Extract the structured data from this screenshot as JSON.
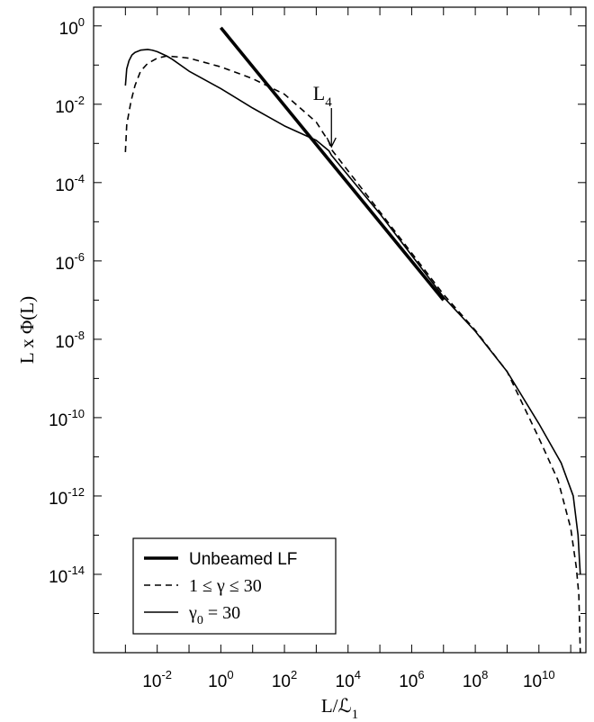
{
  "chart_data": {
    "type": "line",
    "xlabel": "L/ℒ",
    "xlabel_sub": "1",
    "ylabel": "L x Φ(L)",
    "xscale": "log",
    "yscale": "log",
    "xlim": [
      0.0001,
      300000000000.0
    ],
    "ylim": [
      1e-16,
      3
    ],
    "x_ticks": [
      {
        "base": "10",
        "exp": "-2",
        "value": 0.01
      },
      {
        "base": "10",
        "exp": "0",
        "value": 1
      },
      {
        "base": "10",
        "exp": "2",
        "value": 100
      },
      {
        "base": "10",
        "exp": "4",
        "value": 10000
      },
      {
        "base": "10",
        "exp": "6",
        "value": 1000000
      },
      {
        "base": "10",
        "exp": "8",
        "value": 100000000
      },
      {
        "base": "10",
        "exp": "10",
        "value": 10000000000
      }
    ],
    "y_ticks": [
      {
        "base": "10",
        "exp": "0",
        "value": 1
      },
      {
        "base": "10",
        "exp": "-2",
        "value": 0.01
      },
      {
        "base": "10",
        "exp": "-4",
        "value": 0.0001
      },
      {
        "base": "10",
        "exp": "-6",
        "value": 1e-06
      },
      {
        "base": "10",
        "exp": "-8",
        "value": 1e-08
      },
      {
        "base": "10",
        "exp": "-10",
        "value": 1e-10
      },
      {
        "base": "10",
        "exp": "-12",
        "value": 1e-12
      },
      {
        "base": "10",
        "exp": "-14",
        "value": 1e-14
      }
    ],
    "grid": false,
    "legend_position": "bottom-left",
    "series": [
      {
        "name": "Unbeamed LF",
        "style": "thick-solid",
        "x": [
          1,
          10000000
        ],
        "y": [
          0.9,
          1e-07
        ]
      },
      {
        "name": "1 ≤ γ ≤ 30",
        "style": "dashed",
        "x": [
          0.001,
          0.0011,
          0.0015,
          0.002,
          0.003,
          0.005,
          0.01,
          0.02,
          0.05,
          0.1,
          1,
          10,
          100,
          1000,
          2500,
          3000,
          100000,
          10000000,
          100000000,
          1000000000,
          10000000000,
          40000000000,
          100000000000,
          150000000000,
          180000000000,
          200000000000
        ],
        "y": [
          0.0006,
          0.003,
          0.012,
          0.03,
          0.07,
          0.11,
          0.15,
          0.17,
          0.16,
          0.15,
          0.09,
          0.045,
          0.018,
          0.0035,
          0.0011,
          0.0007,
          1.8e-05,
          1.4e-07,
          1.7e-08,
          1.5e-09,
          3e-11,
          2.5e-12,
          1.5e-13,
          1.5e-14,
          3e-15,
          1e-16
        ]
      },
      {
        "name": "γ",
        "name_sub": "0",
        "name_suffix": " = 30",
        "style": "solid",
        "x": [
          0.001,
          0.0011,
          0.0013,
          0.0016,
          0.002,
          0.003,
          0.005,
          0.007,
          0.01,
          0.02,
          0.03,
          0.1,
          1,
          10,
          100,
          1000,
          2500,
          3000,
          100000,
          10000000,
          100000000,
          1000000000,
          10000000000,
          50000000000,
          120000000000,
          170000000000,
          190000000000,
          200000000000
        ],
        "y": [
          0.03,
          0.08,
          0.13,
          0.18,
          0.21,
          0.24,
          0.25,
          0.24,
          0.22,
          0.17,
          0.14,
          0.07,
          0.025,
          0.008,
          0.0028,
          0.0012,
          0.00065,
          0.0005,
          1.6e-05,
          1.2e-07,
          1.6e-08,
          1.5e-09,
          7e-11,
          7e-12,
          1e-12,
          1e-13,
          2e-14,
          1e-14
        ]
      }
    ],
    "annotations": [
      {
        "text": "L",
        "sub": "4",
        "x": 3000,
        "y": 0.0007,
        "arrow": "down"
      }
    ],
    "legend": {
      "items": [
        {
          "label": "Unbeamed LF",
          "style": "thick-solid"
        },
        {
          "label": "1 ≤ γ ≤ 30",
          "style": "dashed"
        },
        {
          "label": "γ",
          "sub": "0",
          "suffix": " = 30",
          "style": "solid"
        }
      ]
    }
  }
}
